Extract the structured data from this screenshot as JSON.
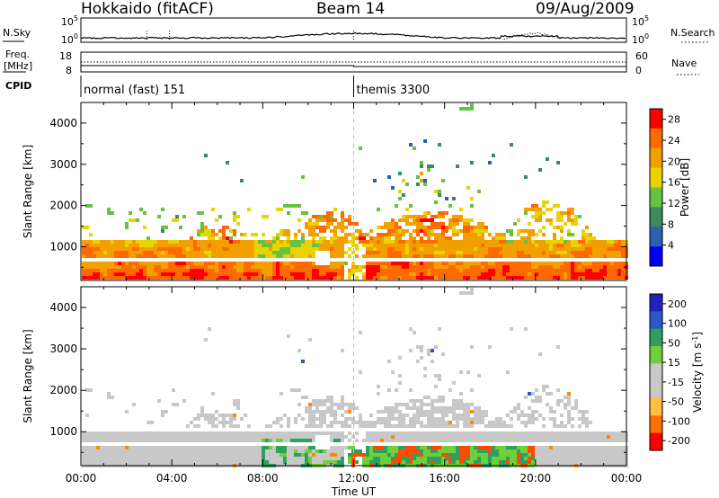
{
  "header": {
    "station": "Hokkaido (fitACF)",
    "beam": "Beam 14",
    "date": "09/Aug/2009"
  },
  "panels": {
    "nsky_label": "N.Sky",
    "nsearch_label": "N.Search",
    "log_ticks": [
      "10^5",
      "10^0"
    ],
    "freq_label": [
      "Freq.",
      "[MHz]"
    ],
    "freq_ticks": [
      "18",
      "8"
    ],
    "nave_label": "Nave",
    "nave_ticks": [
      "60",
      "0"
    ],
    "cpid_label": "CPID",
    "cpid_entries": [
      {
        "start_hour": 0.0,
        "text": "normal (fast) 151"
      },
      {
        "start_hour": 12.0,
        "text": "themis 3300"
      }
    ]
  },
  "chart_data": [
    {
      "type": "heatmap",
      "quantity": "Power",
      "ylabel": "Slant Range [km]",
      "xlim": [
        0,
        24
      ],
      "ylim": [
        180,
        4500
      ],
      "yticks": [
        "1000",
        "2000",
        "3000",
        "4000"
      ],
      "colorbar": {
        "label": "Power [dB]",
        "range": [
          0,
          30
        ],
        "ticks": [
          "4",
          "8",
          "12",
          "16",
          "20",
          "24",
          "28"
        ],
        "colors": [
          "#0000ff",
          "#2f5fb0",
          "#3c8a60",
          "#66c241",
          "#e8d400",
          "#f2a000",
          "#ff6a00",
          "#ff0000"
        ]
      }
    },
    {
      "type": "heatmap",
      "quantity": "Velocity",
      "ylabel": "Slant Range [km]",
      "xlim": [
        0,
        24
      ],
      "ylim": [
        180,
        4500
      ],
      "yticks": [
        "1000",
        "2000",
        "3000",
        "4000"
      ],
      "colorbar": {
        "label": "Velocity [m s^-1]",
        "range": [
          -250,
          250
        ],
        "ticks": [
          "200",
          "100",
          "50",
          "15",
          "-15",
          "-50",
          "-100",
          "-200"
        ],
        "colors": [
          "#ff0000",
          "#ff7000",
          "#ffc040",
          "#c8c8c8",
          "#c8c8c8",
          "#6ecf3a",
          "#2e9e62",
          "#2a58c8",
          "#2020c0"
        ]
      }
    }
  ],
  "xaxis": {
    "label": "Time UT",
    "ticks": [
      "00:00",
      "04:00",
      "08:00",
      "12:00",
      "16:00",
      "20:00",
      "00:00"
    ]
  }
}
